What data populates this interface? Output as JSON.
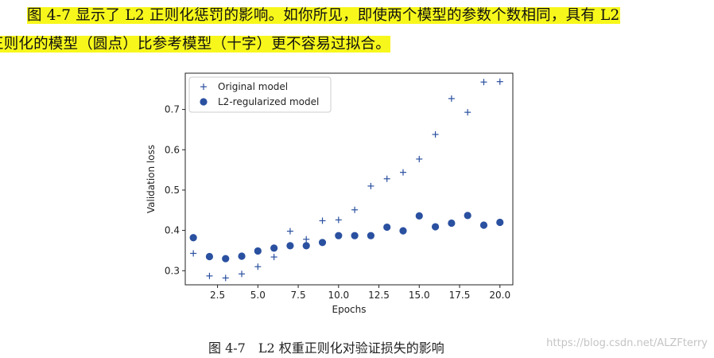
{
  "paragraph": {
    "line1": "图 4-7 显示了 L2 正则化惩罚的影响。如你所见，即使两个模型的参数个数相同，具有 L2",
    "line2": "正则化的模型（圆点）比参考模型（十字）更不容易过拟合。"
  },
  "caption": "图 4-7　L2 权重正则化对验证损失的影响",
  "watermark": "https://blog.csdn.net/ALZFterry",
  "colors": {
    "highlight": "#f7f71c",
    "marker": "#2a50a0"
  },
  "chart_data": {
    "type": "scatter",
    "xlabel": "Epochs",
    "ylabel": "Validation loss",
    "xlim": [
      0.5,
      20.8
    ],
    "ylim": [
      0.265,
      0.79
    ],
    "xticks": [
      2.5,
      5.0,
      7.5,
      10.0,
      12.5,
      15.0,
      17.5,
      20.0
    ],
    "xtick_labels": [
      "2.5",
      "5.0",
      "7.5",
      "10.0",
      "12.5",
      "15.0",
      "17.5",
      "20.0"
    ],
    "yticks": [
      0.3,
      0.4,
      0.5,
      0.6,
      0.7
    ],
    "ytick_labels": [
      "0.3",
      "0.4",
      "0.5",
      "0.6",
      "0.7"
    ],
    "legend_position": "top-left",
    "x": [
      1,
      2,
      3,
      4,
      5,
      6,
      7,
      8,
      9,
      10,
      11,
      12,
      13,
      14,
      15,
      16,
      17,
      18,
      19,
      20
    ],
    "series": [
      {
        "name": "Original model",
        "marker": "plus",
        "values": [
          0.343,
          0.287,
          0.282,
          0.292,
          0.31,
          0.334,
          0.398,
          0.378,
          0.424,
          0.426,
          0.451,
          0.51,
          0.528,
          0.544,
          0.577,
          0.638,
          0.727,
          0.693,
          0.768,
          0.769
        ]
      },
      {
        "name": "L2-regularized model",
        "marker": "circle",
        "values": [
          0.382,
          0.335,
          0.33,
          0.336,
          0.349,
          0.356,
          0.362,
          0.362,
          0.37,
          0.387,
          0.387,
          0.387,
          0.408,
          0.399,
          0.436,
          0.409,
          0.418,
          0.437,
          0.413,
          0.42
        ]
      }
    ]
  }
}
